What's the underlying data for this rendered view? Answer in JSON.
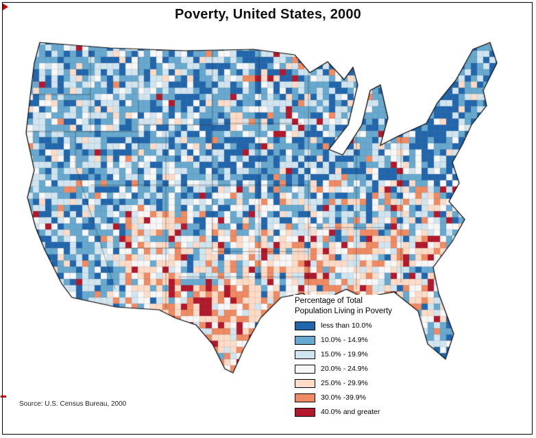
{
  "title": "Poverty, United States, 2000",
  "source": "Source:  U.S. Census Bureau, 2000",
  "legend": {
    "title_line1": "Percentage of Total",
    "title_line2": "Population Living in Poverty",
    "classes": [
      {
        "label": "less than 10.0%",
        "color": "#2166AC"
      },
      {
        "label": "10.0% - 14.9%",
        "color": "#67A9CF"
      },
      {
        "label": "15.0% - 19.9%",
        "color": "#D1E5F0"
      },
      {
        "label": "20.0% - 24.9%",
        "color": "#F7F7F7"
      },
      {
        "label": "25.0% - 29.9%",
        "color": "#FDDBC7"
      },
      {
        "label": "30.0% -39.9%",
        "color": "#EF8A62"
      },
      {
        "label": "40.0% and greater",
        "color": "#B2182B"
      }
    ]
  }
}
